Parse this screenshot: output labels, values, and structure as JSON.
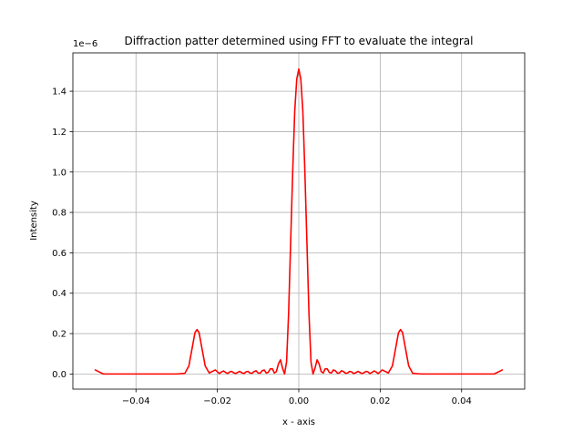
{
  "chart_data": {
    "type": "line",
    "title": "Diffraction patter determined using FFT to evaluate the integral",
    "xlabel": "x - axis",
    "ylabel": "Intensity",
    "y_offset_label": "1e−6",
    "xlim": [
      -0.0555,
      0.0555
    ],
    "ylim": [
      -0.075,
      1.59
    ],
    "x_ticks": [
      -0.04,
      -0.02,
      0.0,
      0.02,
      0.04
    ],
    "x_tick_labels": [
      "−0.04",
      "−0.02",
      "0.00",
      "0.02",
      "0.04"
    ],
    "y_ticks": [
      0.0,
      0.2,
      0.4,
      0.6,
      0.8,
      1.0,
      1.2,
      1.4
    ],
    "y_tick_labels": [
      "0.0",
      "0.2",
      "0.4",
      "0.6",
      "0.8",
      "1.0",
      "1.2",
      "1.4"
    ],
    "grid": true,
    "series": [
      {
        "color": "#ff0000",
        "x": [
          -0.05,
          -0.049,
          -0.048,
          -0.045,
          -0.04,
          -0.035,
          -0.03,
          -0.028,
          -0.027,
          -0.026,
          -0.0255,
          -0.025,
          -0.0245,
          -0.024,
          -0.023,
          -0.022,
          -0.021,
          -0.0205,
          -0.0195,
          -0.019,
          -0.0185,
          -0.018,
          -0.0175,
          -0.017,
          -0.0165,
          -0.016,
          -0.0155,
          -0.015,
          -0.0145,
          -0.014,
          -0.0135,
          -0.013,
          -0.0125,
          -0.012,
          -0.0115,
          -0.011,
          -0.0105,
          -0.01,
          -0.0095,
          -0.009,
          -0.0085,
          -0.008,
          -0.0075,
          -0.007,
          -0.0065,
          -0.006,
          -0.0055,
          -0.005,
          -0.0045,
          -0.004,
          -0.0035,
          -0.003,
          -0.0025,
          -0.002,
          -0.0015,
          -0.001,
          -0.0005,
          0.0,
          0.0005,
          0.001,
          0.0015,
          0.002,
          0.0025,
          0.003,
          0.0035,
          0.004,
          0.0045,
          0.005,
          0.0055,
          0.006,
          0.0065,
          0.007,
          0.0075,
          0.008,
          0.0085,
          0.009,
          0.0095,
          0.01,
          0.0105,
          0.011,
          0.0115,
          0.012,
          0.0125,
          0.013,
          0.0135,
          0.014,
          0.0145,
          0.015,
          0.0155,
          0.016,
          0.0165,
          0.017,
          0.0175,
          0.018,
          0.0185,
          0.019,
          0.0195,
          0.0205,
          0.021,
          0.022,
          0.023,
          0.024,
          0.0245,
          0.025,
          0.0255,
          0.026,
          0.027,
          0.028,
          0.03,
          0.035,
          0.04,
          0.045,
          0.048,
          0.049,
          0.05
        ],
        "y": [
          0.02,
          0.01,
          0.0,
          0.0,
          0.0,
          0.0,
          0.0,
          0.003,
          0.04,
          0.15,
          0.205,
          0.22,
          0.205,
          0.15,
          0.04,
          0.005,
          0.015,
          0.02,
          0.002,
          0.01,
          0.015,
          0.008,
          0.002,
          0.01,
          0.013,
          0.006,
          0.002,
          0.008,
          0.013,
          0.006,
          0.002,
          0.01,
          0.013,
          0.005,
          0.003,
          0.012,
          0.016,
          0.005,
          0.004,
          0.016,
          0.02,
          0.005,
          0.008,
          0.025,
          0.026,
          0.005,
          0.012,
          0.05,
          0.07,
          0.03,
          0.0,
          0.06,
          0.3,
          0.65,
          1.0,
          1.3,
          1.46,
          1.51,
          1.46,
          1.3,
          1.0,
          0.65,
          0.3,
          0.06,
          0.0,
          0.03,
          0.07,
          0.05,
          0.012,
          0.005,
          0.026,
          0.025,
          0.008,
          0.005,
          0.02,
          0.016,
          0.004,
          0.005,
          0.016,
          0.012,
          0.003,
          0.005,
          0.013,
          0.01,
          0.002,
          0.006,
          0.013,
          0.008,
          0.002,
          0.006,
          0.013,
          0.01,
          0.002,
          0.008,
          0.015,
          0.01,
          0.002,
          0.02,
          0.015,
          0.005,
          0.04,
          0.15,
          0.205,
          0.22,
          0.205,
          0.15,
          0.04,
          0.003,
          0.0,
          0.0,
          0.0,
          0.0,
          0.0,
          0.01,
          0.02
        ]
      }
    ]
  }
}
